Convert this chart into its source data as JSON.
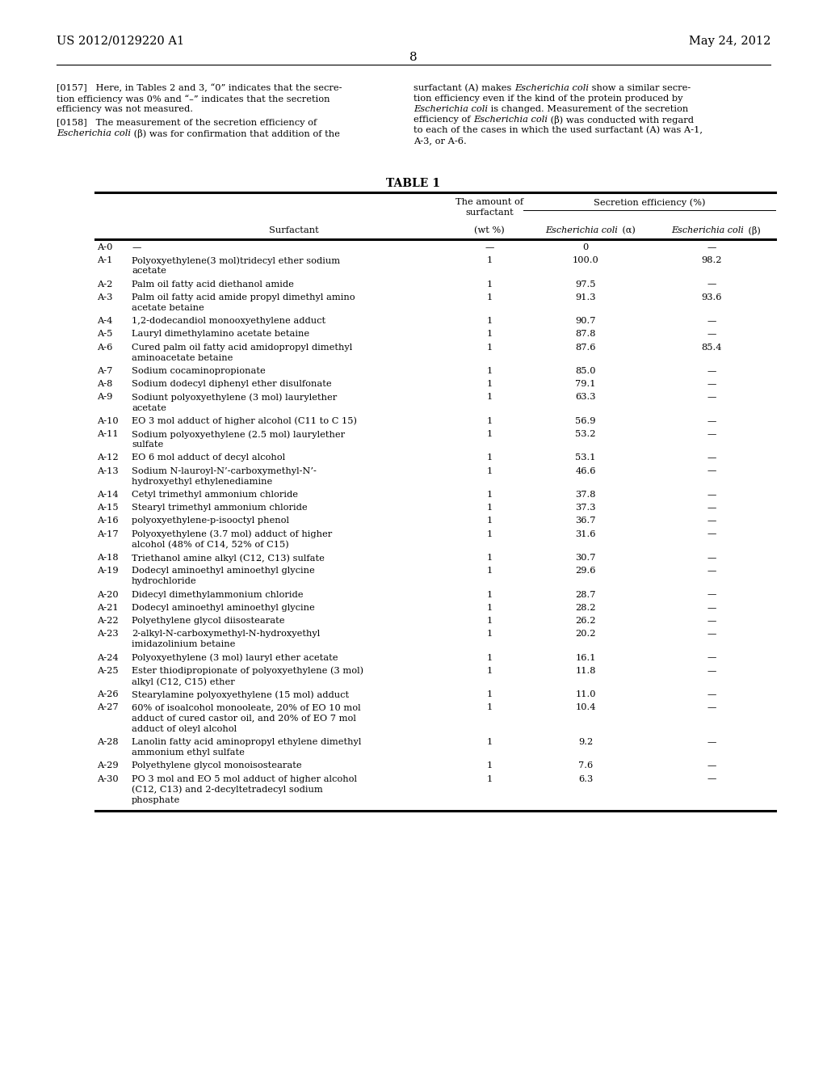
{
  "header_left": "US 2012/0129220 A1",
  "header_right": "May 24, 2012",
  "page_number": "8",
  "rows": [
    [
      "A-0",
      "—",
      "—",
      "0",
      "—"
    ],
    [
      "A-1",
      "Polyoxyethylene(3 mol)tridecyl ether sodium\nacetate",
      "1",
      "100.0",
      "98.2"
    ],
    [
      "A-2",
      "Palm oil fatty acid diethanol amide",
      "1",
      "97.5",
      "—"
    ],
    [
      "A-3",
      "Palm oil fatty acid amide propyl dimethyl amino\nacetate betaine",
      "1",
      "91.3",
      "93.6"
    ],
    [
      "A-4",
      "1,2-dodecandiol monooxyethylene adduct",
      "1",
      "90.7",
      "—"
    ],
    [
      "A-5",
      "Lauryl dimethylamino acetate betaine",
      "1",
      "87.8",
      "—"
    ],
    [
      "A-6",
      "Cured palm oil fatty acid amidopropyl dimethyl\naminoacetate betaine",
      "1",
      "87.6",
      "85.4"
    ],
    [
      "A-7",
      "Sodium cocaminopropionate",
      "1",
      "85.0",
      "—"
    ],
    [
      "A-8",
      "Sodium dodecyl diphenyl ether disulfonate",
      "1",
      "79.1",
      "—"
    ],
    [
      "A-9",
      "Sodiunt polyoxyethylene (3 mol) laurylether\nacetate",
      "1",
      "63.3",
      "—"
    ],
    [
      "A-10",
      "EO 3 mol adduct of higher alcohol (C11 to C 15)",
      "1",
      "56.9",
      "—"
    ],
    [
      "A-11",
      "Sodium polyoxyethylene (2.5 mol) laurylether\nsulfate",
      "1",
      "53.2",
      "—"
    ],
    [
      "A-12",
      "EO 6 mol adduct of decyl alcohol",
      "1",
      "53.1",
      "—"
    ],
    [
      "A-13",
      "Sodium N-lauroyl-N’-carboxymethyl-N’-\nhydroxyethyl ethylenediamine",
      "1",
      "46.6",
      "—"
    ],
    [
      "A-14",
      "Cetyl trimethyl ammonium chloride",
      "1",
      "37.8",
      "—"
    ],
    [
      "A-15",
      "Stearyl trimethyl ammonium chloride",
      "1",
      "37.3",
      "—"
    ],
    [
      "A-16",
      "polyoxyethylene-p-isooctyl phenol",
      "1",
      "36.7",
      "—"
    ],
    [
      "A-17",
      "Polyoxyethylene (3.7 mol) adduct of higher\nalcohol (48% of C14, 52% of C15)",
      "1",
      "31.6",
      "—"
    ],
    [
      "A-18",
      "Triethanol amine alkyl (C12, C13) sulfate",
      "1",
      "30.7",
      "—"
    ],
    [
      "A-19",
      "Dodecyl aminoethyl aminoethyl glycine\nhydrochloride",
      "1",
      "29.6",
      "—"
    ],
    [
      "A-20",
      "Didecyl dimethylammonium chloride",
      "1",
      "28.7",
      "—"
    ],
    [
      "A-21",
      "Dodecyl aminoethyl aminoethyl glycine",
      "1",
      "28.2",
      "—"
    ],
    [
      "A-22",
      "Polyethylene glycol diisostearate",
      "1",
      "26.2",
      "—"
    ],
    [
      "A-23",
      "2-alkyl-N-carboxymethyl-N-hydroxyethyl\nimidazolinium betaine",
      "1",
      "20.2",
      "—"
    ],
    [
      "A-24",
      "Polyoxyethylene (3 mol) lauryl ether acetate",
      "1",
      "16.1",
      "—"
    ],
    [
      "A-25",
      "Ester thiodipropionate of polyoxyethylene (3 mol)\nalkyl (C12, C15) ether",
      "1",
      "11.8",
      "—"
    ],
    [
      "A-26",
      "Stearylamine polyoxyethylene (15 mol) adduct",
      "1",
      "11.0",
      "—"
    ],
    [
      "A-27",
      "60% of isoalcohol monooleate, 20% of EO 10 mol\nadduct of cured castor oil, and 20% of EO 7 mol\nadduct of oleyl alcohol",
      "1",
      "10.4",
      "—"
    ],
    [
      "A-28",
      "Lanolin fatty acid aminopropyl ethylene dimethyl\nammonium ethyl sulfate",
      "1",
      "9.2",
      "—"
    ],
    [
      "A-29",
      "Polyethylene glycol monoisostearate",
      "1",
      "7.6",
      "—"
    ],
    [
      "A-30",
      "PO 3 mol and EO 5 mol adduct of higher alcohol\n(C12, C13) and 2-decyltetradecyl sodium\nphosphate",
      "1",
      "6.3",
      "—"
    ]
  ],
  "left_para_lines": [
    [
      "[0157]   Here, in Tables 2 and 3, “0” indicates that the secre-"
    ],
    [
      "tion efficiency was 0% and “–” indicates that the secretion"
    ],
    [
      "efficiency was not measured."
    ],
    [],
    [
      "[0158]   The measurement of the secretion efficiency of"
    ],
    [
      "<<italic>>Escherichia coli<<end>> (β) was for confirmation that addition of the"
    ]
  ],
  "right_para_lines": [
    [
      "surfactant (A) makes <<italic>>Escherichia coli<<end>> show a similar secre-"
    ],
    [
      "tion efficiency even if the kind of the protein produced by"
    ],
    [
      "<<italic>>Escherichia coli<<end>> is changed. Measurement of the secretion"
    ],
    [
      "efficiency of <<italic>>Escherichia coli<<end>> (β) was conducted with regard"
    ],
    [
      "to each of the cases in which the used surfactant (A) was A-1,"
    ],
    [
      "A-3, or A-6."
    ]
  ]
}
